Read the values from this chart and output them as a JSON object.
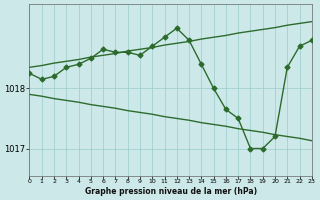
{
  "title": "Graphe pression niveau de la mer (hPa)",
  "bg_color": "#cce8e8",
  "grid_color": "#99cccc",
  "line_color": "#2d6b2d",
  "marker": "D",
  "markersize": 2.5,
  "linewidth": 1.0,
  "hours": [
    0,
    1,
    2,
    3,
    4,
    5,
    6,
    7,
    8,
    9,
    10,
    11,
    12,
    13,
    14,
    15,
    16,
    17,
    18,
    19,
    20,
    21,
    22,
    23
  ],
  "line_main": [
    1018.25,
    1018.15,
    1018.2,
    1018.35,
    1018.4,
    1018.5,
    1018.65,
    1018.6,
    1018.6,
    1018.55,
    1018.7,
    1018.85,
    1019.0,
    1018.8,
    1018.4,
    1018.0,
    1017.65,
    1017.5,
    1017.0,
    1017.0,
    1017.2,
    1018.35,
    1018.7,
    1018.8
  ],
  "line_upper": [
    1018.35,
    1018.38,
    1018.42,
    1018.45,
    1018.48,
    1018.52,
    1018.55,
    1018.58,
    1018.62,
    1018.65,
    1018.68,
    1018.72,
    1018.75,
    1018.78,
    1018.82,
    1018.85,
    1018.88,
    1018.92,
    1018.95,
    1018.98,
    1019.01,
    1019.05,
    1019.08,
    1019.11
  ],
  "line_lower": [
    1017.9,
    1017.87,
    1017.83,
    1017.8,
    1017.77,
    1017.73,
    1017.7,
    1017.67,
    1017.63,
    1017.6,
    1017.57,
    1017.53,
    1017.5,
    1017.47,
    1017.43,
    1017.4,
    1017.37,
    1017.33,
    1017.3,
    1017.27,
    1017.23,
    1017.2,
    1017.17,
    1017.13
  ],
  "yticks": [
    1017.0,
    1018.0
  ],
  "ylim": [
    1016.55,
    1019.4
  ],
  "xlim": [
    0,
    23
  ],
  "xticks": [
    0,
    1,
    2,
    3,
    4,
    5,
    6,
    7,
    8,
    9,
    10,
    11,
    12,
    13,
    14,
    15,
    16,
    17,
    18,
    19,
    20,
    21,
    22,
    23
  ]
}
